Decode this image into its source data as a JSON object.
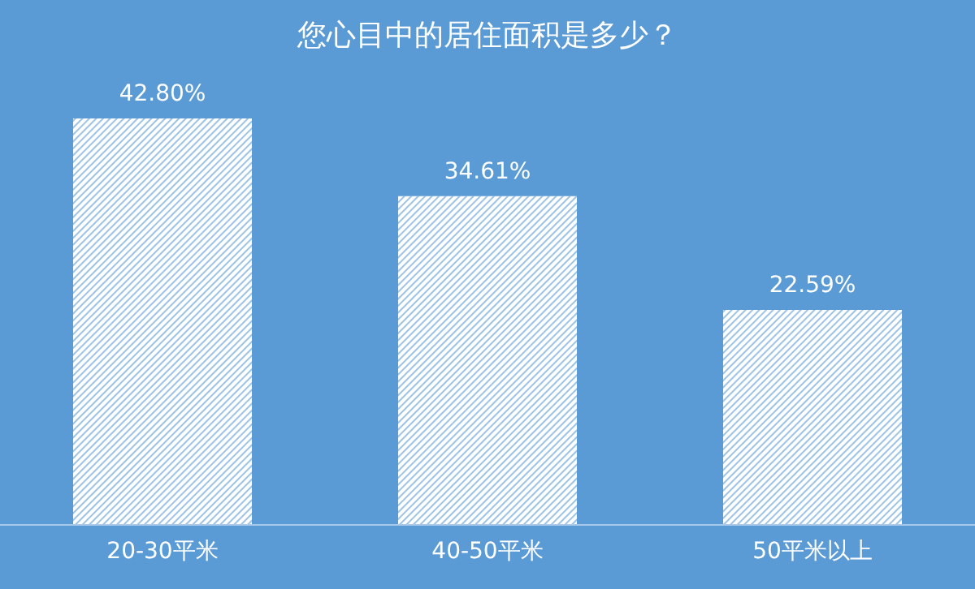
{
  "chart_data": {
    "type": "bar",
    "title": "您心目中的居住面积是多少？",
    "categories": [
      "20-30平米",
      "40-50平米",
      "50平米以上"
    ],
    "values": [
      42.8,
      34.61,
      22.59
    ],
    "color": "#ffffff",
    "value_labels": [
      "42.80%",
      "34.61%",
      "22.59%"
    ]
  }
}
